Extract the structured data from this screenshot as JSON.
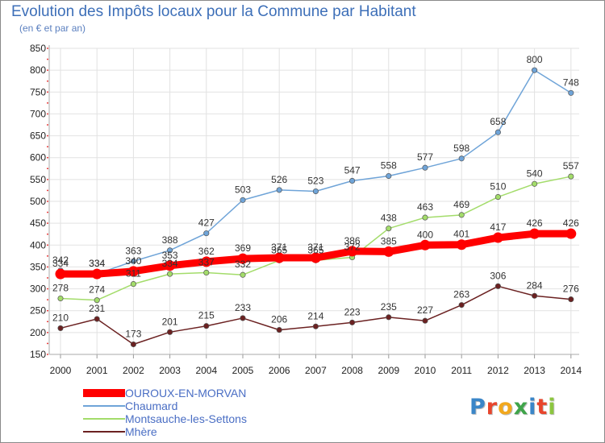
{
  "header": {
    "title": "Evolution des Impôts locaux pour la Commune par Habitant",
    "subtitle": "(en € et par an)"
  },
  "logo": {
    "text": "Proxiti",
    "letter_colors": [
      "#3a86c8",
      "#e8452c",
      "#f2a81d",
      "#3fa44a",
      "#3a86c8",
      "#e8452c",
      "#8cc63f"
    ]
  },
  "chart_data": {
    "type": "line",
    "x": [
      "2000",
      "2001",
      "2002",
      "2003",
      "2004",
      "2005",
      "2006",
      "2007",
      "2008",
      "2009",
      "2010",
      "2011",
      "2012",
      "2013",
      "2014"
    ],
    "ylim": [
      150,
      850
    ],
    "yticks": [
      150,
      200,
      250,
      300,
      350,
      400,
      450,
      500,
      550,
      600,
      650,
      700,
      750,
      800,
      850
    ],
    "grid": true,
    "legend_position": "bottom-left",
    "series": [
      {
        "name": "OUROUX-EN-MORVAN",
        "color": "#ff0000",
        "values": [
          334,
          334,
          340,
          353,
          362,
          369,
          371,
          371,
          386,
          385,
          400,
          401,
          417,
          426,
          426
        ]
      },
      {
        "name": "Chaumard",
        "color": "#6fa4d8",
        "values": [
          342,
          334,
          363,
          388,
          427,
          503,
          526,
          523,
          547,
          558,
          577,
          598,
          658,
          800,
          748
        ]
      },
      {
        "name": "Montsauche-les-Settons",
        "color": "#a3dc6a",
        "values": [
          278,
          274,
          311,
          334,
          337,
          332,
          365,
          365,
          372,
          438,
          463,
          469,
          510,
          540,
          557
        ]
      },
      {
        "name": "Mhère",
        "color": "#6b2121",
        "values": [
          210,
          231,
          173,
          201,
          215,
          233,
          206,
          214,
          223,
          235,
          227,
          263,
          306,
          284,
          276
        ]
      }
    ]
  }
}
